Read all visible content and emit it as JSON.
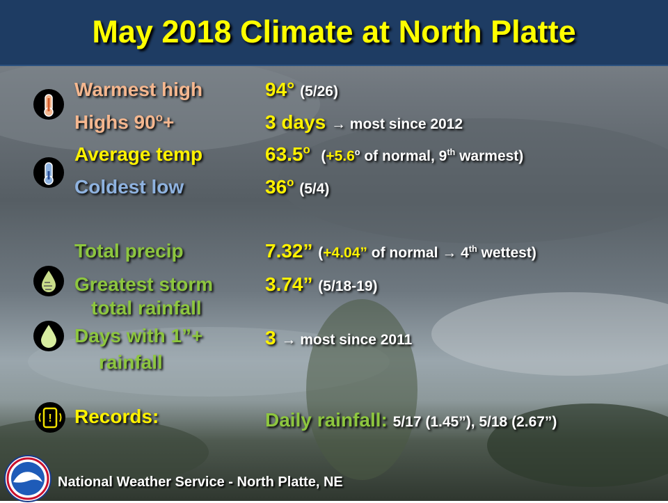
{
  "title": "May 2018 Climate at North Platte",
  "rows": {
    "warmest_high": {
      "label": "Warmest high",
      "value": "94°",
      "detail": "(5/26)"
    },
    "highs_90": {
      "label_pre": "Highs 90",
      "label_deg": "o",
      "label_post": "+",
      "value": "3 days",
      "detail": "→ most since 2012"
    },
    "avg_temp": {
      "label": "Average temp",
      "value": "63.5",
      "value_deg": "o",
      "detail_open": "(",
      "detail_anom": "+5.6",
      "detail_deg": "o",
      "detail_mid": " of normal, 9",
      "detail_sup": "th",
      "detail_end": " warmest)"
    },
    "coldest_low": {
      "label": "Coldest low",
      "value": "36",
      "value_deg": "o",
      "detail": "(5/4)"
    },
    "total_precip": {
      "label": "Total precip",
      "value": "7.32”",
      "detail_open": "(",
      "detail_anom": "+4.04”",
      "detail_mid": " of normal → 4",
      "detail_sup": "th",
      "detail_end": " wettest)"
    },
    "greatest_storm": {
      "label_line1": "Greatest storm",
      "label_line2": "total rainfall",
      "value": "3.74”",
      "detail": "(5/18-19)"
    },
    "days_1in": {
      "label_line1": "Days with 1”+",
      "label_line2": "rainfall",
      "value": "3",
      "detail": "→ most since 2011"
    },
    "records": {
      "label": "Records:",
      "value_label": "Daily rainfall:",
      "detail": "5/17 (1.45”), 5/18 (2.67”)"
    }
  },
  "icons": [
    "thermometer-hot-icon",
    "thermometer-cold-icon",
    "rain-gauge-drop-icon",
    "raindrop-icon",
    "alert-phone-icon"
  ],
  "footer": {
    "text": "National Weather Service  -  North Platte, NE",
    "logo_text": "NATIONAL WEATHER SERVICE"
  },
  "colors": {
    "title": "#ffff00",
    "title_bar": "#1e3c63",
    "warm_label": "#f5b78f",
    "cool_label": "#8fb3e0",
    "value": "#fff200",
    "precip_label": "#8dc63f"
  }
}
